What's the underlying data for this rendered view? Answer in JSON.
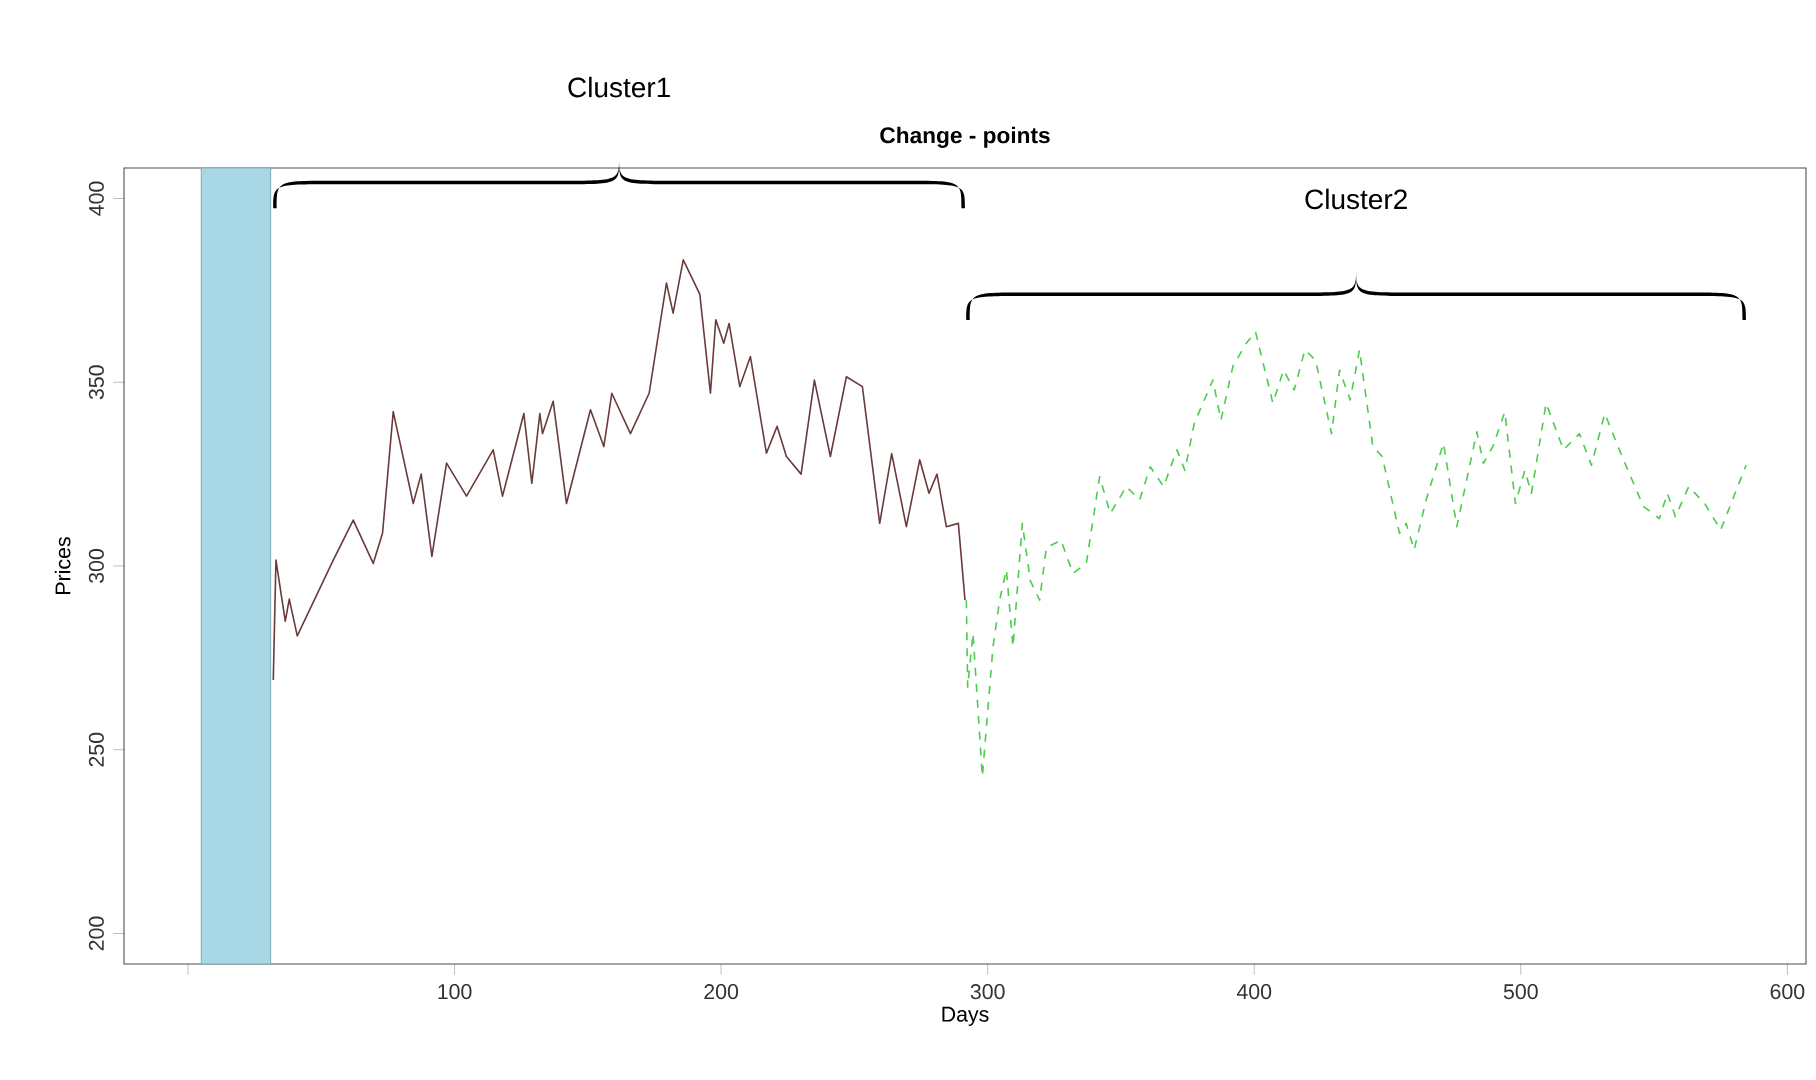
{
  "chart_data": {
    "type": "line",
    "title": "Change - points",
    "xlabel": "Days",
    "ylabel": "Prices",
    "xlim": [
      -24,
      607
    ],
    "ylim": [
      191.7,
      408.3
    ],
    "xticks": [
      {
        "value": 0,
        "label": null
      },
      100,
      200,
      300,
      400,
      500,
      600
    ],
    "yticks": [
      200,
      250,
      300,
      350,
      400
    ],
    "grid": false,
    "bands": [
      {
        "axis": "x",
        "from": 5,
        "to": 31,
        "color": "#a8d8e6"
      }
    ],
    "annotations": [
      "Cluster1",
      "Cluster2"
    ],
    "series": [
      {
        "color": "#6b3a3a",
        "line_style": "solid",
        "x": [
          32,
          33,
          36.5,
          38,
          41,
          54.5,
          62,
          69.5,
          73,
          77,
          84.5,
          87.5,
          91.5,
          97,
          104.5,
          114.5,
          118,
          126,
          129,
          132,
          133,
          137,
          142,
          151,
          156,
          159,
          166,
          173,
          179.5,
          182,
          185.8,
          192,
          196,
          198,
          201,
          203,
          207,
          211,
          217,
          221,
          224.5,
          230,
          235,
          241,
          247,
          253,
          259.5,
          264,
          269.5,
          274.5,
          278,
          281,
          284.5,
          289,
          291.5
        ],
        "values": [
          269,
          301.6,
          285,
          291,
          281,
          301.6,
          312.5,
          300.7,
          309,
          342,
          317,
          325,
          302.6,
          328,
          319,
          331.6,
          319,
          341.5,
          322.5,
          341.5,
          336,
          344.8,
          317,
          342.5,
          332.5,
          347,
          336,
          347,
          377,
          368.8,
          383.3,
          374,
          347,
          367,
          360.6,
          366,
          348.8,
          357,
          330.7,
          338,
          329.8,
          325,
          350.6,
          329.8,
          351.5,
          348.8,
          311.6,
          330.6,
          310.7,
          328.9,
          319.8,
          325,
          310.7,
          311.6,
          290.7
        ]
      },
      {
        "color": "#4ccc4c",
        "line_style": "dashed",
        "x": [
          292,
          292.5,
          294.5,
          298,
          302,
          304.5,
          307,
          309.5,
          313,
          316,
          319.5,
          322,
          327.5,
          332,
          337,
          342,
          346,
          352,
          357,
          361,
          366,
          371,
          374,
          377.5,
          384.5,
          387.5,
          392,
          397,
          400.5,
          407,
          411,
          415,
          419,
          423,
          429,
          432,
          436,
          439.5,
          444.5,
          448,
          454.5,
          457,
          460,
          464.5,
          471,
          476,
          483.5,
          486,
          489.5,
          494,
          498,
          501.5,
          504,
          509.5,
          516,
          522,
          526.5,
          531.5,
          538,
          546,
          552,
          555,
          558,
          563,
          569,
          575,
          584.5
        ],
        "values": [
          290.7,
          267,
          281.7,
          242.7,
          278,
          290.7,
          299,
          278,
          311.6,
          296,
          290.7,
          305,
          307,
          298,
          300.7,
          324.3,
          314.3,
          321.6,
          318,
          327,
          321.6,
          331.6,
          326,
          338.8,
          350.6,
          339.7,
          354.3,
          360.6,
          363.7,
          344.3,
          353.3,
          347.9,
          358.8,
          356,
          336,
          353.3,
          345.2,
          358.8,
          332.5,
          329.8,
          308.9,
          311.6,
          304.4,
          318,
          333.4,
          310.7,
          336.5,
          327.9,
          332.5,
          341.9,
          317,
          326,
          319.8,
          344.3,
          331.6,
          336,
          327.4,
          341.5,
          329.8,
          316.2,
          312.9,
          319.8,
          313.4,
          321.6,
          317,
          309.8,
          327.4
        ]
      }
    ]
  }
}
